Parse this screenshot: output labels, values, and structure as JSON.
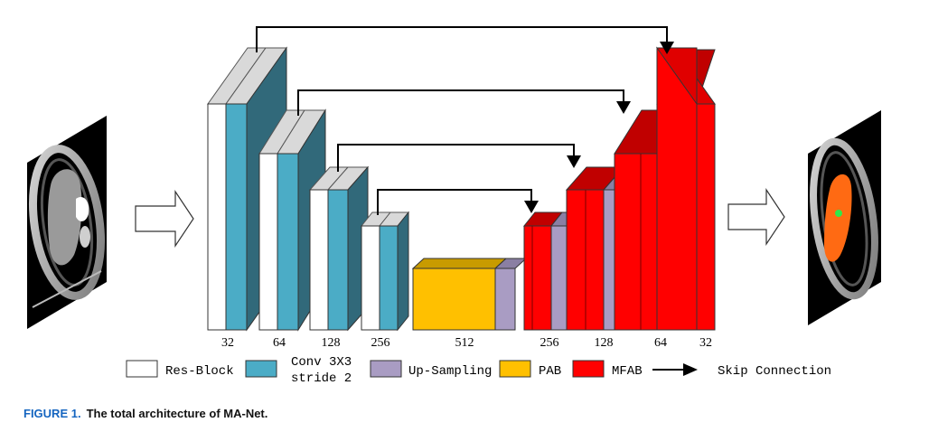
{
  "figure": {
    "label": "FIGURE 1.",
    "title": "The total architecture of MA-Net."
  },
  "encoder_channels": [
    "32",
    "64",
    "128",
    "256"
  ],
  "bottleneck_channels": "512",
  "decoder_channels": [
    "256",
    "128",
    "64",
    "32"
  ],
  "legend": [
    {
      "key": "res_block",
      "label": "Res-Block",
      "color": "#ffffff"
    },
    {
      "key": "conv",
      "label_lines": [
        "Conv 3X3",
        "stride 2"
      ],
      "color": "#4bacc6"
    },
    {
      "key": "upsampling",
      "label": "Up-Sampling",
      "color": "#a99cc3"
    },
    {
      "key": "pab",
      "label": "PAB",
      "color": "#ffc000"
    },
    {
      "key": "mfab",
      "label": "MFAB",
      "color": "#ff0000"
    },
    {
      "key": "skip",
      "label": "Skip Connection"
    }
  ],
  "colors": {
    "res_block": "#ffffff",
    "conv": "#4bacc6",
    "conv_side": "#31697a",
    "upsampling": "#a99cc3",
    "pab": "#ffc000",
    "pab_top": "#c89b00",
    "mfab": "#ff0000",
    "mfab_side": "#c00000",
    "caption_label": "#1565c0"
  }
}
